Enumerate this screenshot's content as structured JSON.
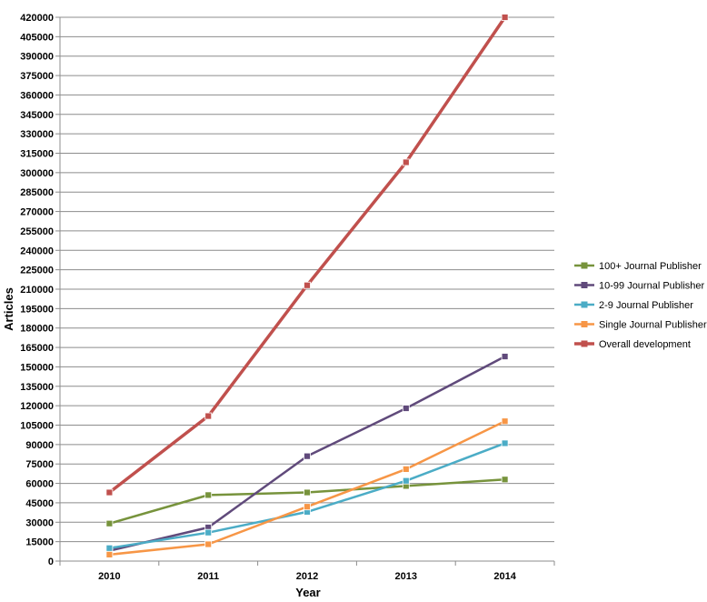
{
  "chart_data": {
    "type": "line",
    "title": "",
    "xlabel": "Year",
    "ylabel": "Articles",
    "ylim": [
      0,
      420000
    ],
    "ytick_step": 15000,
    "grid": true,
    "legend_position": "right",
    "categories": [
      "2010",
      "2011",
      "2012",
      "2013",
      "2014"
    ],
    "series": [
      {
        "name": "100+ Journal  Publisher",
        "color": "#77933c",
        "values": [
          29000,
          51000,
          53000,
          58000,
          63000
        ]
      },
      {
        "name": "10-99 Journal  Publisher",
        "color": "#604a7b",
        "values": [
          8000,
          26000,
          81000,
          118000,
          158000
        ]
      },
      {
        "name": "2-9 Journal  Publisher",
        "color": "#4bacc6",
        "values": [
          10000,
          22000,
          38000,
          62000,
          91000
        ]
      },
      {
        "name": "Single Journal  Publisher",
        "color": "#f79646",
        "values": [
          5000,
          13000,
          42000,
          71000,
          108000
        ]
      },
      {
        "name": "Overall development",
        "color": "#c0504d",
        "values": [
          53000,
          112000,
          213000,
          308000,
          420000
        ]
      }
    ]
  }
}
